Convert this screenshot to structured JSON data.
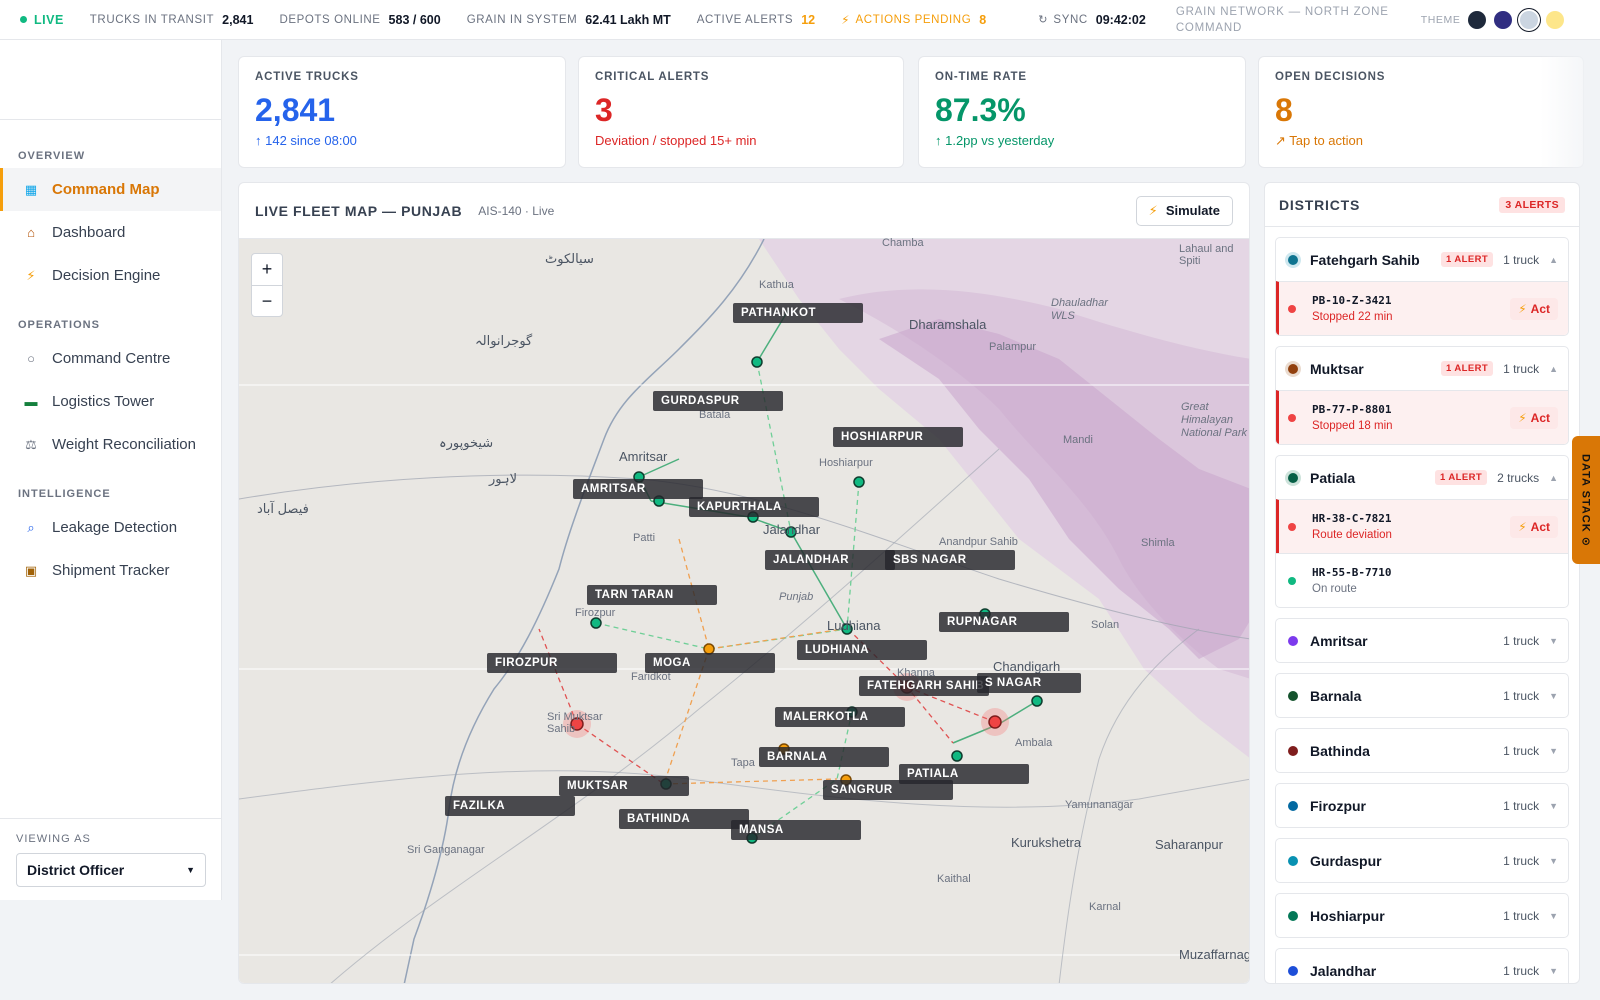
{
  "topbar": {
    "live": "LIVE",
    "trucks_in_transit_label": "TRUCKS IN TRANSIT",
    "trucks_in_transit_value": "2,841",
    "depots_online_label": "DEPOTS ONLINE",
    "depots_online_value": "583 / 600",
    "grain_label": "GRAIN IN SYSTEM",
    "grain_value": "62.41 Lakh MT",
    "alerts_label": "ACTIVE ALERTS",
    "alerts_value": "12",
    "actions_label": "ACTIONS PENDING",
    "actions_value": "8",
    "sync_label": "SYNC",
    "sync_value": "09:42:02",
    "network_title_1": "GRAIN NETWORK — NORTH ZONE",
    "network_title_2": "COMMAND",
    "theme_label": "THEME",
    "theme_colors": [
      "#1e293b",
      "#312e81",
      "#cbd5e1",
      "#fde68a"
    ]
  },
  "sidebar": {
    "sections": [
      {
        "title": "OVERVIEW",
        "items": [
          {
            "label": "Command Map",
            "icon": "map-icon",
            "glyph": "▦",
            "active": true
          },
          {
            "label": "Dashboard",
            "icon": "home-icon",
            "glyph": "⌂"
          },
          {
            "label": "Decision Engine",
            "icon": "bolt-icon",
            "glyph": "⚡"
          }
        ]
      },
      {
        "title": "OPERATIONS",
        "items": [
          {
            "label": "Command Centre",
            "icon": "circle-icon",
            "glyph": "○"
          },
          {
            "label": "Logistics Tower",
            "icon": "truck-icon",
            "glyph": "▬"
          },
          {
            "label": "Weight Reconciliation",
            "icon": "scale-icon",
            "glyph": "⚖"
          }
        ]
      },
      {
        "title": "INTELLIGENCE",
        "items": [
          {
            "label": "Leakage Detection",
            "icon": "search-icon",
            "glyph": "⌕"
          },
          {
            "label": "Shipment Tracker",
            "icon": "package-icon",
            "glyph": "▣"
          }
        ]
      }
    ],
    "viewing_as_label": "VIEWING AS",
    "viewing_as_value": "District Officer"
  },
  "kpis": [
    {
      "label": "ACTIVE TRUCKS",
      "value": "2,841",
      "sub": "↑ 142 since 08:00",
      "color": "#2563eb",
      "sub_color": "#2563eb"
    },
    {
      "label": "CRITICAL ALERTS",
      "value": "3",
      "sub": "Deviation / stopped 15+ min",
      "color": "#dc2626",
      "sub_color": "#dc2626"
    },
    {
      "label": "ON-TIME RATE",
      "value": "87.3%",
      "sub": "↑ 1.2pp vs yesterday",
      "color": "#059669",
      "sub_color": "#059669"
    },
    {
      "label": "OPEN DECISIONS",
      "value": "8",
      "sub": "↗ Tap to action",
      "color": "#d97706",
      "sub_color": "#d97706"
    }
  ],
  "map": {
    "title": "LIVE FLEET MAP — PUNJAB",
    "subtitle": "AIS-140 · Live",
    "simulate": "Simulate",
    "zoom_in": "+",
    "zoom_out": "−",
    "district_labels": [
      "PATHANKOT",
      "GURDASPUR",
      "HOSHIARPUR",
      "AMRITSAR",
      "KAPURTHALA",
      "JALANDHAR",
      "SBS NAGAR",
      "TARN TARAN",
      "RUPNAGAR",
      "FIROZPUR",
      "MOGA",
      "LUDHIANA",
      "FATEHGARH SAHIB",
      "S NAGAR",
      "MALERKOTLA",
      "BARNALA",
      "PATIALA",
      "MUKTSAR",
      "SANGRUR",
      "FAZILKA",
      "BATHINDA",
      "MANSA"
    ],
    "places": [
      "Chamba",
      "Lahaul and Spiti",
      "Kathua",
      "Dharamshala",
      "Dhauladhar WLS",
      "Palampur",
      "Great Himalayan National Park",
      "Mandi",
      "Batala",
      "Amritsar",
      "Hoshiarpur",
      "Jalandhar",
      "Anandpur Sahib",
      "Shimla",
      "Patti",
      "Solan",
      "Punjab",
      "Ludhiana",
      "Firozpur",
      "Chandigarh",
      "Faridkot",
      "Khanna",
      "Sri Muktsar Sahib",
      "Ambala",
      "Tapa",
      "Yamunanagar",
      "Sri Ganganagar",
      "Kurukshetra",
      "Saharanpur",
      "Kaithal",
      "Karnal",
      "Muzaffarnagar",
      "فیصل آباد",
      "لاہور",
      "سیالکوٹ",
      "گوجرانوالہ",
      "شیخوپورہ"
    ]
  },
  "districts": {
    "title": "DISTRICTS",
    "alerts_badge": "3 ALERTS",
    "expanded": [
      {
        "name": "Fatehgarh Sahib",
        "color": "#0e7490",
        "badge": "1 ALERT",
        "count": "1 truck",
        "trucks": [
          {
            "id": "PB-10-Z-3421",
            "status": "Stopped 22 min",
            "alert": true,
            "action": "Act"
          }
        ]
      },
      {
        "name": "Muktsar",
        "color": "#92400e",
        "badge": "1 ALERT",
        "count": "1 truck",
        "trucks": [
          {
            "id": "PB-77-P-8801",
            "status": "Stopped 18 min",
            "alert": true,
            "action": "Act"
          }
        ]
      },
      {
        "name": "Patiala",
        "color": "#065f46",
        "badge": "1 ALERT",
        "count": "2 trucks",
        "trucks": [
          {
            "id": "HR-38-C-7821",
            "status": "Route deviation",
            "alert": true,
            "action": "Act"
          },
          {
            "id": "HR-55-B-7710",
            "status": "On route",
            "alert": false
          }
        ]
      }
    ],
    "collapsed": [
      {
        "name": "Amritsar",
        "color": "#7c3aed",
        "count": "1 truck"
      },
      {
        "name": "Barnala",
        "color": "#14532d",
        "count": "1 truck"
      },
      {
        "name": "Bathinda",
        "color": "#7f1d1d",
        "count": "1 truck"
      },
      {
        "name": "Firozpur",
        "color": "#0369a1",
        "count": "1 truck"
      },
      {
        "name": "Gurdaspur",
        "color": "#0891b2",
        "count": "1 truck"
      },
      {
        "name": "Hoshiarpur",
        "color": "#047857",
        "count": "1 truck"
      },
      {
        "name": "Jalandhar",
        "color": "#1d4ed8",
        "count": "1 truck"
      }
    ]
  },
  "data_stack": "DATA STACK ⊙"
}
